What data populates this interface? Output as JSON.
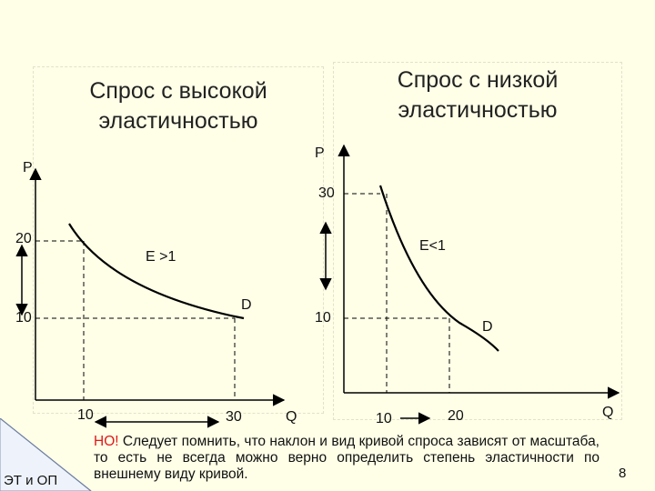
{
  "left_panel": {
    "title_line1": "Спрос с высокой",
    "title_line2": "эластичностью",
    "axis_p": "P",
    "axis_q": "Q",
    "y_tick_high": "20",
    "y_tick_low": "10",
    "x_tick_low": "10",
    "x_tick_high": "30",
    "elasticity_label": "E >1",
    "curve_label": "D"
  },
  "right_panel": {
    "title_line1": "Спрос с низкой",
    "title_line2": "эластичностью",
    "axis_p": "P",
    "axis_q": "Q",
    "y_tick_high": "30",
    "y_tick_low": "10",
    "x_tick_low": "10",
    "x_tick_high": "20",
    "elasticity_label": "E<1",
    "curve_label": "D"
  },
  "note": {
    "prefix": "НО!",
    "text": " Следует помнить, что наклон и вид кривой спроса зависят от масштаба, то есть не всегда можно верно определить степень эластичности по внешнему виду кривой."
  },
  "footer": {
    "left": "ЭТ и ОП",
    "page_number": "8"
  },
  "colors": {
    "background": "#ffffe8",
    "note_highlight": "#e01818"
  }
}
